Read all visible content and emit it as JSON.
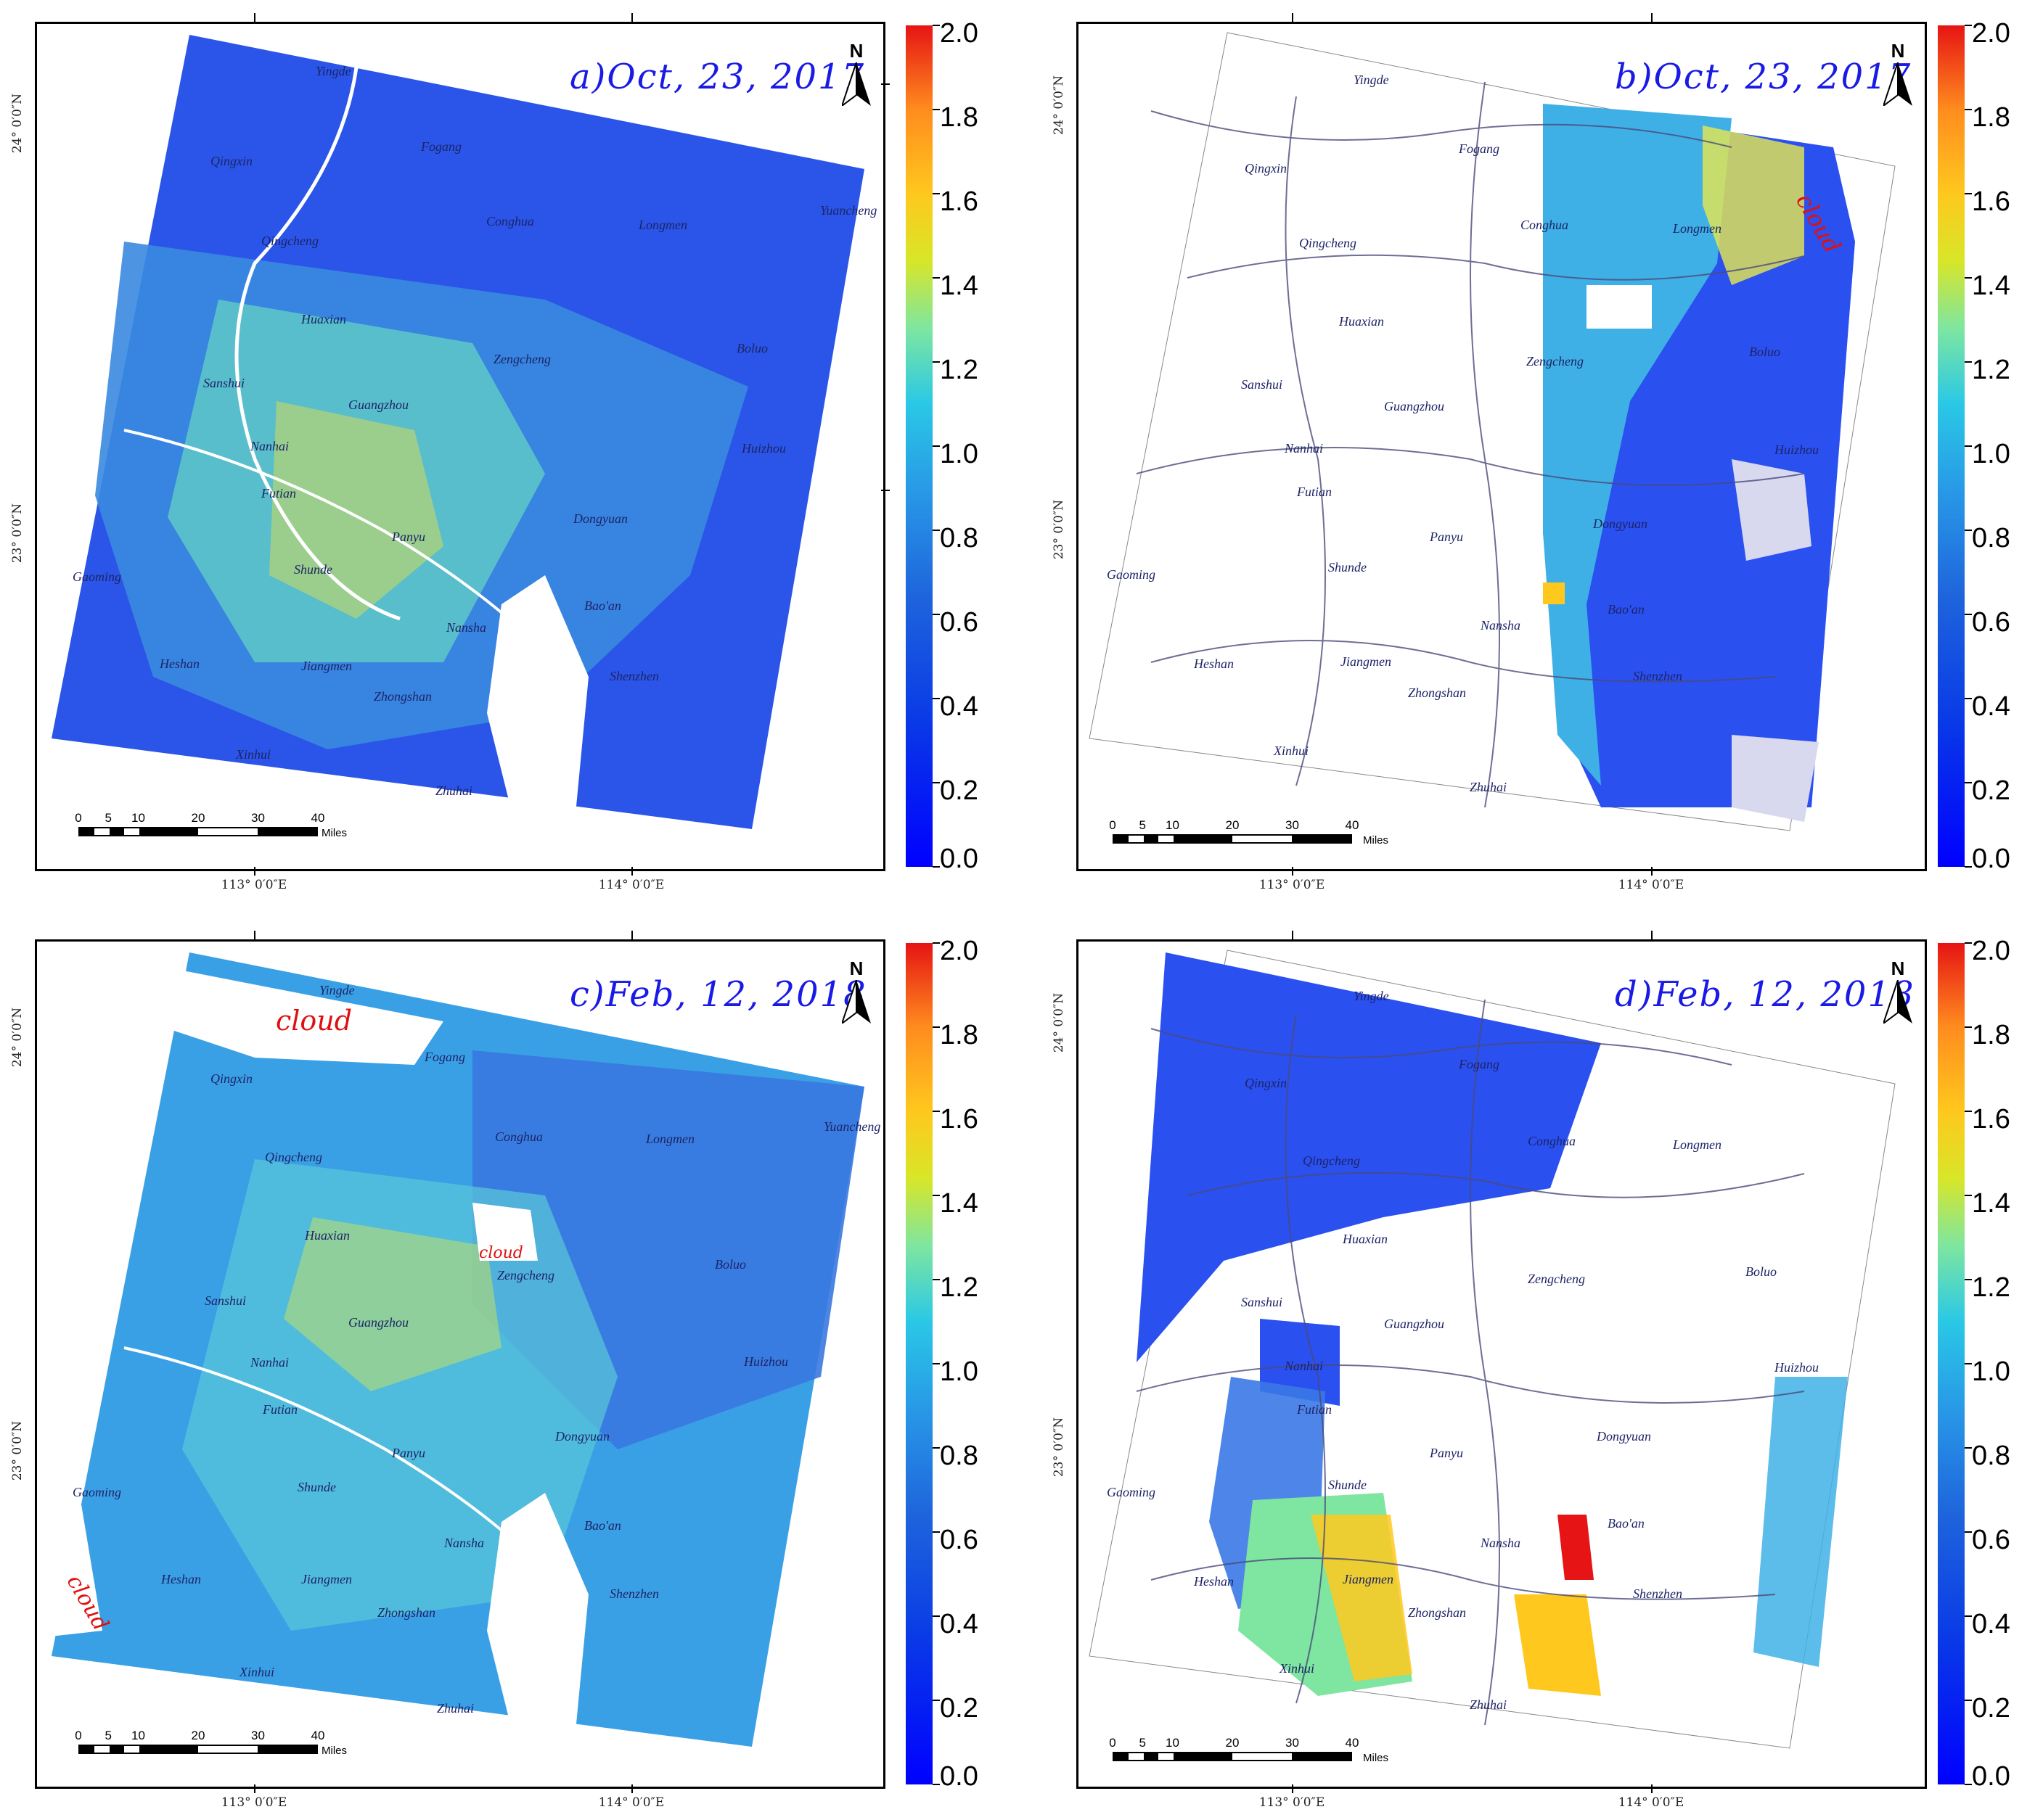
{
  "panels": [
    {
      "id": "a",
      "title": "a)Oct, 23, 2017",
      "cloud_labels": [],
      "places": [
        "Yingde",
        "Qingxin",
        "Fogang",
        "Conghua",
        "Longmen",
        "Yuancheng",
        "Qingcheng",
        "Huaxian",
        "Zengcheng",
        "Boluo",
        "Sanshui",
        "Guangzhou",
        "Huizhou",
        "Nanhai",
        "Futian",
        "Panyu",
        "Dongyuan",
        "Gaoming",
        "Shunde",
        "Bao'an",
        "Heshan",
        "Jiangmen",
        "Nansha",
        "Shenzhen",
        "Zhongshan",
        "Xinhui",
        "Zhuhai"
      ]
    },
    {
      "id": "b",
      "title": "b)Oct, 23, 2017",
      "cloud_labels": [
        "cloud"
      ],
      "places": [
        "Yingde",
        "Qingxin",
        "Fogang",
        "Conghua",
        "Longmen",
        "Qingcheng",
        "Huaxian",
        "Zengcheng",
        "Boluo",
        "Sanshui",
        "Guangzhou",
        "Huizhou",
        "Nanhai",
        "Futian",
        "Dongyuan",
        "Panyu",
        "Gaoming",
        "Shunde",
        "Bao'an",
        "Nansha",
        "Heshan",
        "Jiangmen",
        "Shenzhen",
        "Zhongshan",
        "Xinhui",
        "Zhuhai"
      ]
    },
    {
      "id": "c",
      "title": "c)Feb, 12, 2018",
      "cloud_labels": [
        "cloud",
        "cloud",
        "cloud"
      ],
      "places": [
        "Yingde",
        "Qingxin",
        "Fogang",
        "Conghua",
        "Longmen",
        "Yuancheng",
        "Qingcheng",
        "Huaxian",
        "Zengcheng",
        "Boluo",
        "Sanshui",
        "Guangzhou",
        "Huizhou",
        "Nanhai",
        "Futian",
        "Panyu",
        "Dongyuan",
        "Gaoming",
        "Shunde",
        "Bao'an",
        "Heshan",
        "Jiangmen",
        "Nansha",
        "Shenzhen",
        "Zhongshan",
        "Xinhui",
        "Zhuhai"
      ]
    },
    {
      "id": "d",
      "title": "d)Feb, 12, 2018",
      "cloud_labels": [],
      "places": [
        "Yingde",
        "Qingxin",
        "Fogang",
        "Conghua",
        "Longmen",
        "Qingcheng",
        "Huaxian",
        "Zengcheng",
        "Boluo",
        "Sanshui",
        "Guangzhou",
        "Huizhou",
        "Nanhai",
        "Futian",
        "Panyu",
        "Dongyuan",
        "Gaoming",
        "Shunde",
        "Bao'an",
        "Nansha",
        "Heshan",
        "Jiangmen",
        "Shenzhen",
        "Zhongshan",
        "Xinhui",
        "Zhuhai"
      ]
    }
  ],
  "north_arrow": "N",
  "scale_bar": {
    "ticks": [
      "0",
      "5",
      "10",
      "20",
      "30",
      "40"
    ],
    "unit": "Miles"
  },
  "coords": {
    "lon1": "113° 0′0″E",
    "lon2": "114° 0′0″E",
    "lat1": "24° 0′0″N",
    "lat2": "23° 0′0″N"
  },
  "colorbar": {
    "labels": [
      "2.0",
      "1.8",
      "1.6",
      "1.4",
      "1.2",
      "1.0",
      "0.8",
      "0.6",
      "0.4",
      "0.2",
      "0.0"
    ],
    "range": [
      0.0,
      2.0
    ],
    "colors": [
      "#0000ff",
      "#2896e6",
      "#2ac8e6",
      "#d8e628",
      "#ffc81e",
      "#e61414"
    ]
  }
}
